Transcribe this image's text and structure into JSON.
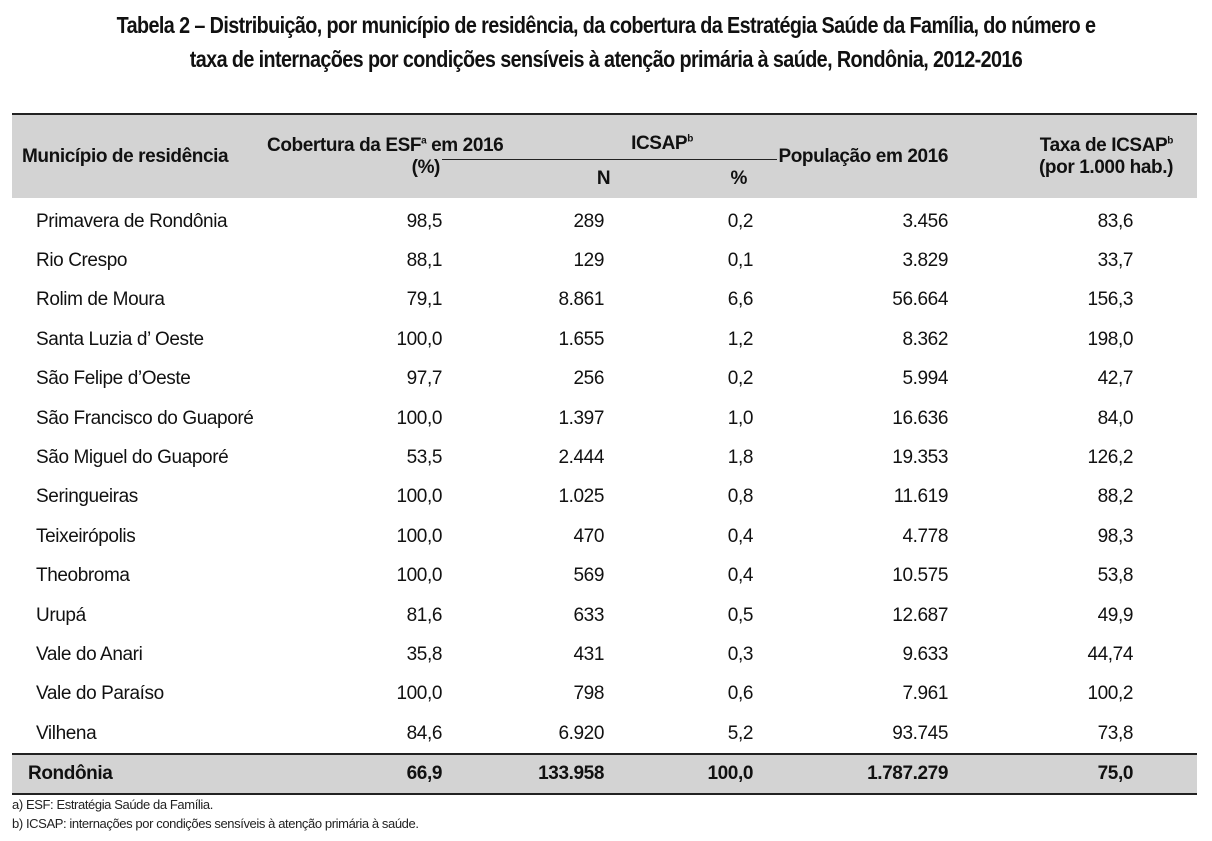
{
  "title": {
    "line1": "Tabela 2 – Distribuição, por município de residência, da cobertura da Estratégia Saúde da Família, do número e",
    "line2": "taxa de internações por condições sensíveis à atenção primária à saúde, Rondônia, 2012-2016"
  },
  "header": {
    "municipio": "Município de residência",
    "cobertura_a": "Cobertura da ESF",
    "cobertura_sup": "a",
    "cobertura_b": " em 2016",
    "cobertura_c": "(%)",
    "icsap": "ICSAP",
    "icsap_sup": "b",
    "n": "N",
    "pct": "%",
    "populacao": "População em 2016",
    "taxa_a": "Taxa de ICSAP",
    "taxa_sup": "b",
    "taxa_b": "(por 1.000 hab.)"
  },
  "rows": [
    {
      "municipio": "Primavera de Rondônia",
      "cobertura": "98,5",
      "n": "289",
      "pct": "0,2",
      "populacao": "3.456",
      "taxa": "83,6"
    },
    {
      "municipio": "Rio Crespo",
      "cobertura": "88,1",
      "n": "129",
      "pct": "0,1",
      "populacao": "3.829",
      "taxa": "33,7"
    },
    {
      "municipio": "Rolim de Moura",
      "cobertura": "79,1",
      "n": "8.861",
      "pct": "6,6",
      "populacao": "56.664",
      "taxa": "156,3"
    },
    {
      "municipio": "Santa Luzia d’ Oeste",
      "cobertura": "100,0",
      "n": "1.655",
      "pct": "1,2",
      "populacao": "8.362",
      "taxa": "198,0"
    },
    {
      "municipio": "São Felipe d’Oeste",
      "cobertura": "97,7",
      "n": "256",
      "pct": "0,2",
      "populacao": "5.994",
      "taxa": "42,7"
    },
    {
      "municipio": "São Francisco do Guaporé",
      "cobertura": "100,0",
      "n": "1.397",
      "pct": "1,0",
      "populacao": "16.636",
      "taxa": "84,0"
    },
    {
      "municipio": "São Miguel do Guaporé",
      "cobertura": "53,5",
      "n": "2.444",
      "pct": "1,8",
      "populacao": "19.353",
      "taxa": "126,2"
    },
    {
      "municipio": "Seringueiras",
      "cobertura": "100,0",
      "n": "1.025",
      "pct": "0,8",
      "populacao": "11.619",
      "taxa": "88,2"
    },
    {
      "municipio": "Teixeirópolis",
      "cobertura": "100,0",
      "n": "470",
      "pct": "0,4",
      "populacao": "4.778",
      "taxa": "98,3"
    },
    {
      "municipio": "Theobroma",
      "cobertura": "100,0",
      "n": "569",
      "pct": "0,4",
      "populacao": "10.575",
      "taxa": "53,8"
    },
    {
      "municipio": "Urupá",
      "cobertura": "81,6",
      "n": "633",
      "pct": "0,5",
      "populacao": "12.687",
      "taxa": "49,9"
    },
    {
      "municipio": "Vale do Anari",
      "cobertura": "35,8",
      "n": "431",
      "pct": "0,3",
      "populacao": "9.633",
      "taxa": "44,74"
    },
    {
      "municipio": "Vale do Paraíso",
      "cobertura": "100,0",
      "n": "798",
      "pct": "0,6",
      "populacao": "7.961",
      "taxa": "100,2"
    },
    {
      "municipio": "Vilhena",
      "cobertura": "84,6",
      "n": "6.920",
      "pct": "5,2",
      "populacao": "93.745",
      "taxa": "73,8"
    }
  ],
  "total": {
    "municipio": "Rondônia",
    "cobertura": "66,9",
    "n": "133.958",
    "pct": "100,0",
    "populacao": "1.787.279",
    "taxa": "75,0"
  },
  "notes": [
    "a) ESF: Estratégia Saúde da Família.",
    "b) ICSAP: internações por condições sensíveis à atenção primária à saúde."
  ],
  "colors": {
    "header_bg": "#d3d3d3",
    "rule": "#222222"
  }
}
